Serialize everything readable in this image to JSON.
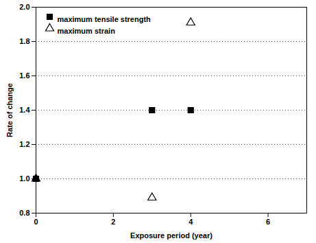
{
  "chart_data": {
    "type": "scatter",
    "x_label": "Exposure period (year)",
    "y_label": "Rate of change",
    "x": [
      0,
      3,
      4
    ],
    "series": [
      {
        "name": "maximum tensile strength",
        "color": "#000000",
        "marker": "square",
        "values": [
          1.0,
          1.4,
          1.4
        ]
      },
      {
        "name": "maximum strain",
        "color": "#000000",
        "marker": "open-triangle",
        "values": [
          1.0,
          0.89,
          1.91
        ]
      }
    ],
    "xlim": [
      0,
      7
    ],
    "xticks": [
      0,
      2,
      4,
      6
    ],
    "ylim": [
      0.8,
      2.0
    ],
    "yticks": [
      0.8,
      {
        "value": 1.0,
        "label": "1.0"
      },
      1.2,
      1.4,
      1.6,
      1.8,
      {
        "value": 2.0,
        "label": "2.0"
      }
    ],
    "grid": true,
    "legend": "top-left"
  }
}
